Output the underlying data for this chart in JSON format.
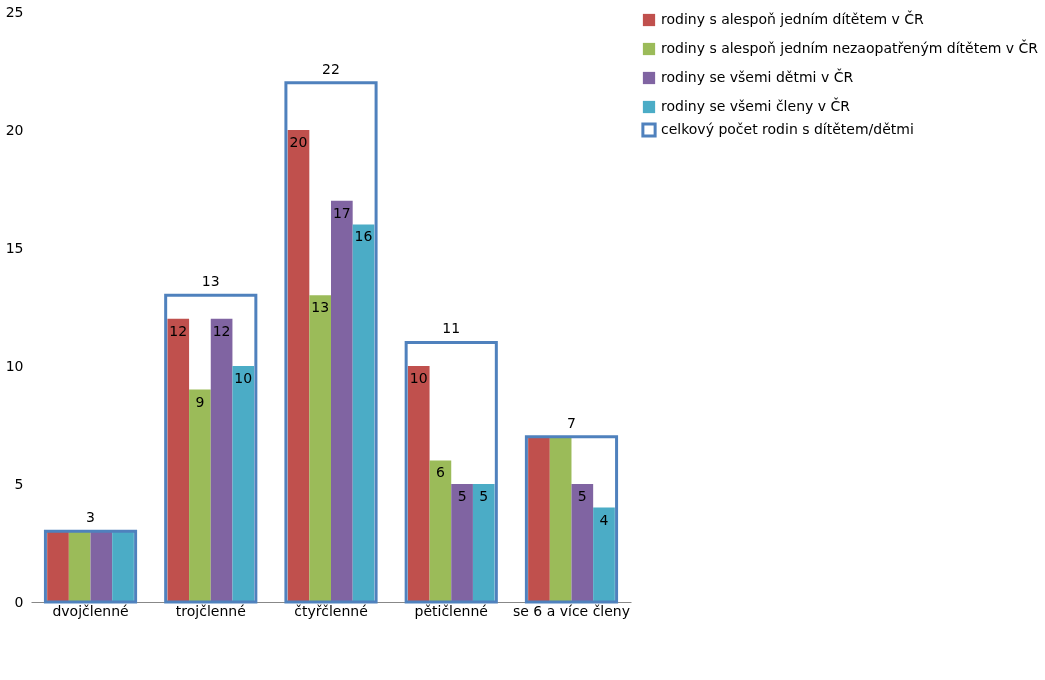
{
  "chart_data": {
    "type": "bar",
    "categories": [
      "dvojčlenné",
      "trojčlenné",
      "čtyřčlenné",
      "pětičlenné",
      "se 6 a více členy"
    ],
    "series": [
      {
        "name": "rodiny s alespoň jedním dítětem v ČR",
        "color": "#c0504d",
        "values": [
          3,
          12,
          20,
          10,
          7
        ],
        "value_labels": [
          null,
          "12",
          "20",
          "10",
          null
        ]
      },
      {
        "name": "rodiny s alespoň jedním nezaopatřeným dítětem v ČR",
        "color": "#9bbb59",
        "values": [
          3,
          9,
          13,
          6,
          7
        ],
        "value_labels": [
          null,
          "9",
          "13",
          "6",
          null
        ]
      },
      {
        "name": "rodiny se všemi dětmi v ČR",
        "color": "#8064a2",
        "values": [
          3,
          12,
          17,
          5,
          5
        ],
        "value_labels": [
          null,
          "12",
          "17",
          "5",
          "5"
        ]
      },
      {
        "name": "rodiny se všemi členy v ČR",
        "color": "#4bacc6",
        "values": [
          3,
          10,
          16,
          5,
          4
        ],
        "value_labels": [
          null,
          "10",
          "16",
          "5",
          "4"
        ]
      },
      {
        "name": "celkový počet rodin s dítětem/dětmi",
        "type": "bar",
        "line_style": "solid",
        "color": "#4f81bd",
        "values": [
          3,
          13,
          22,
          11,
          7
        ],
        "value_labels": [
          "3",
          "13",
          "22",
          "11",
          "7"
        ]
      }
    ],
    "ylim": [
      0,
      25
    ],
    "yticks": [
      0,
      5,
      10,
      15,
      20,
      25
    ],
    "grid": false,
    "legend": "top right"
  }
}
